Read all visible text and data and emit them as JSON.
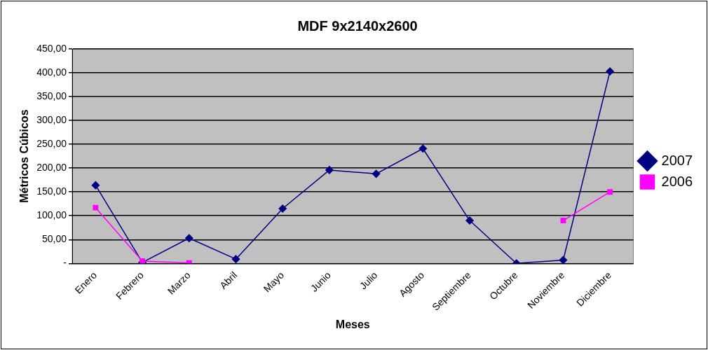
{
  "chart_data": {
    "type": "line",
    "title": "MDF 9x2140x2600",
    "xlabel": "Meses",
    "ylabel": "Métricos Cúbicos",
    "categories": [
      "Enero",
      "Febrero",
      "Marzo",
      "Abril",
      "Mayo",
      "Junio",
      "Julio",
      "Agosto",
      "Septiembre",
      "Octubre",
      "Noviembre",
      "Diciembre"
    ],
    "series": [
      {
        "name": "2007",
        "color": "#000080",
        "marker": "diamond",
        "values": [
          164,
          2,
          53,
          9,
          115,
          196,
          188,
          241,
          90,
          0,
          7,
          403
        ]
      },
      {
        "name": "2006",
        "color": "#ff00ff",
        "marker": "square",
        "values": [
          117,
          5,
          1,
          null,
          null,
          null,
          null,
          null,
          null,
          null,
          90,
          150
        ]
      }
    ],
    "ylim": [
      0,
      450
    ],
    "yticks": [
      {
        "value": 0,
        "label": "-"
      },
      {
        "value": 50,
        "label": "50,00"
      },
      {
        "value": 100,
        "label": "100,00"
      },
      {
        "value": 150,
        "label": "150,00"
      },
      {
        "value": 200,
        "label": "200,00"
      },
      {
        "value": 250,
        "label": "250,00"
      },
      {
        "value": 300,
        "label": "300,00"
      },
      {
        "value": 350,
        "label": "350,00"
      },
      {
        "value": 400,
        "label": "400,00"
      },
      {
        "value": 450,
        "label": "450,00"
      }
    ],
    "grid": "y",
    "legend": "right",
    "line_style": "solid"
  }
}
